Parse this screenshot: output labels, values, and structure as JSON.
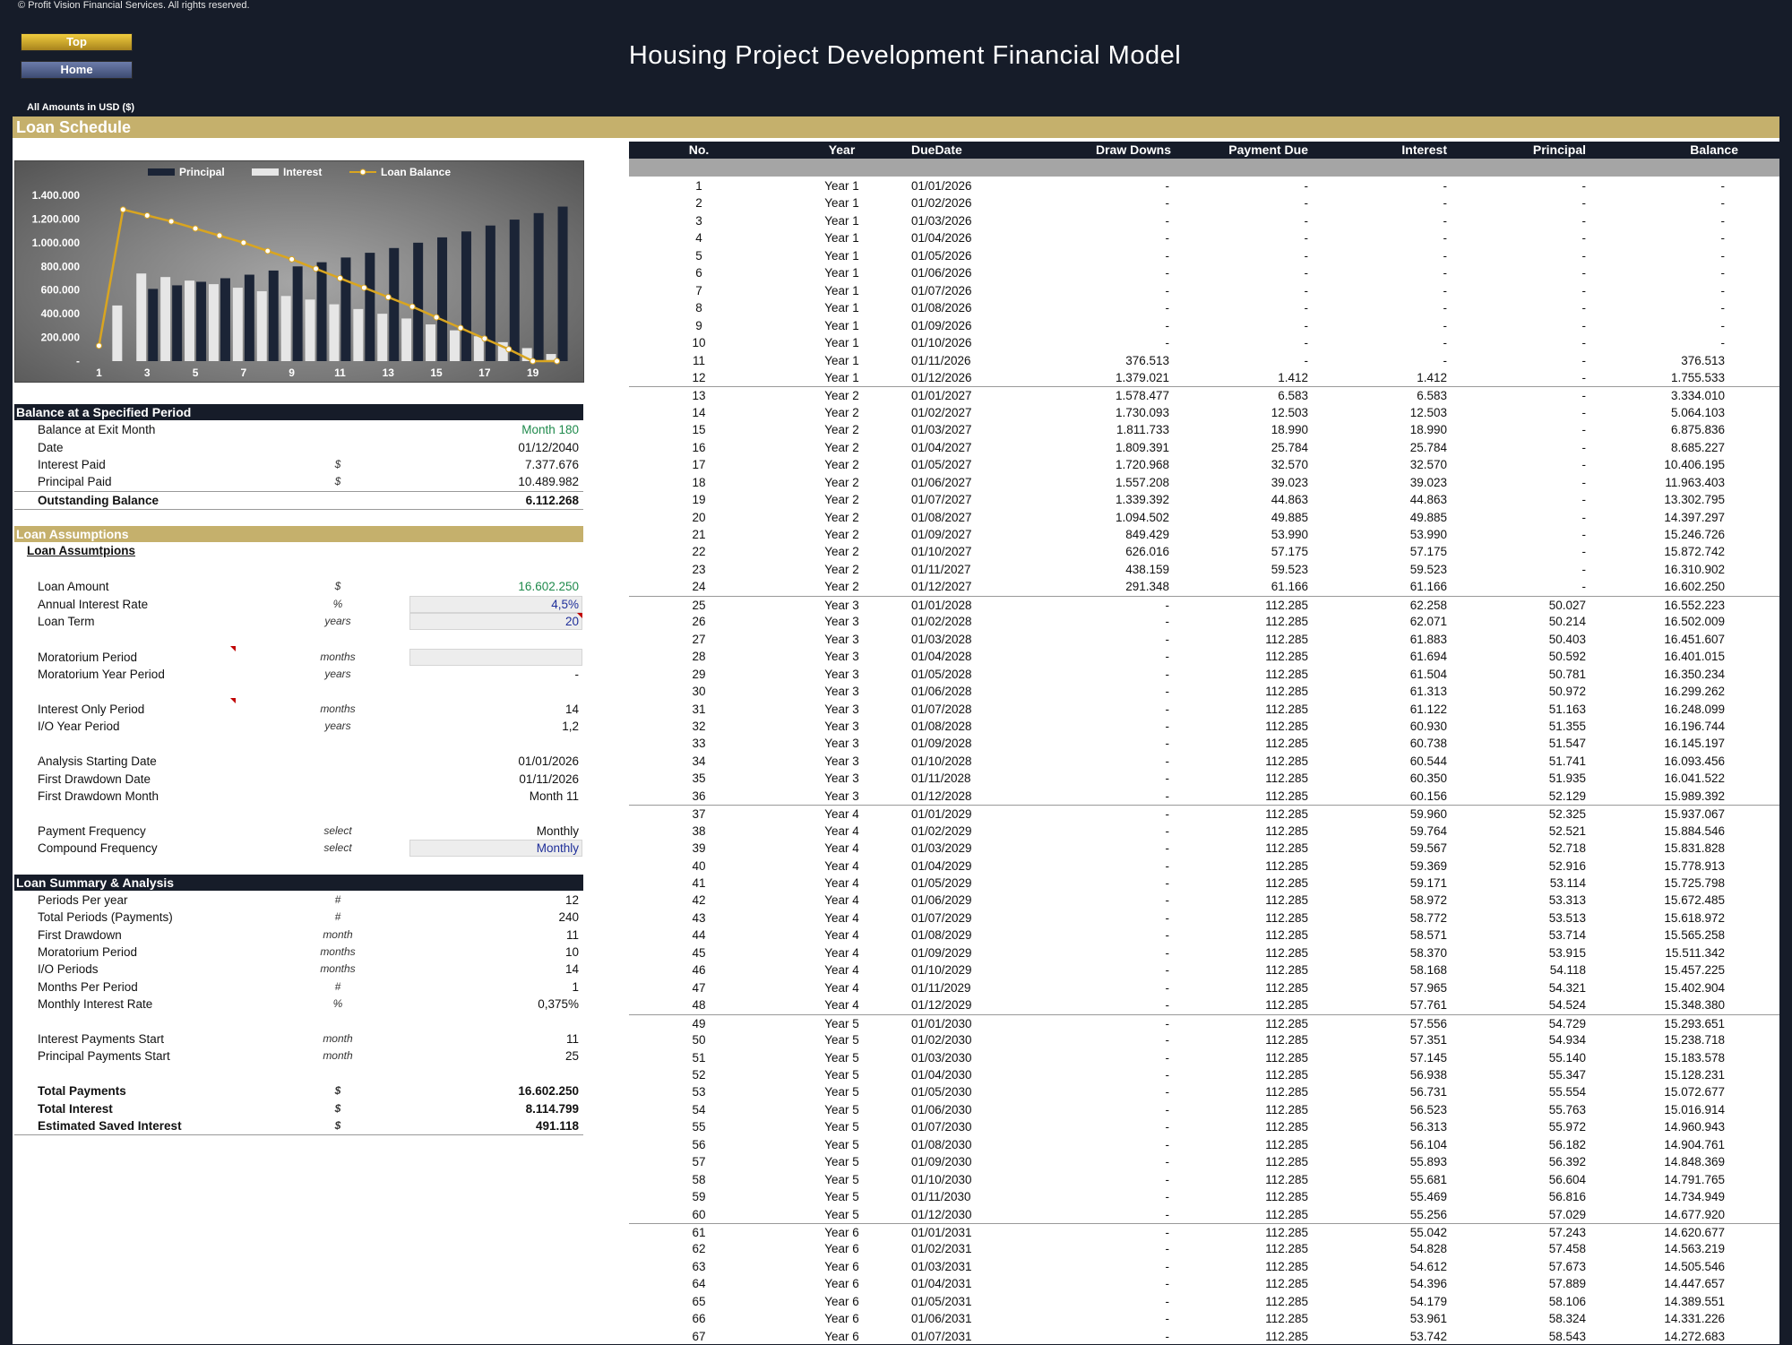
{
  "copyright": "© Profit Vision Financial Services. All rights reserved.",
  "nav": {
    "top": "Top",
    "home": "Home"
  },
  "title": "Housing Project Development Financial Model",
  "amounts_note": "All Amounts in  USD ($)",
  "section_title": "Loan Schedule",
  "chart_data": {
    "type": "bar",
    "legend": [
      "Principal",
      "Interest",
      "Loan Balance"
    ],
    "legend_position": "top",
    "categories": [
      1,
      2,
      3,
      4,
      5,
      6,
      7,
      8,
      9,
      10,
      11,
      12,
      13,
      14,
      15,
      16,
      17,
      18,
      19,
      20
    ],
    "x_tick_labels": [
      "1",
      "3",
      "5",
      "7",
      "9",
      "11",
      "13",
      "15",
      "17",
      "19"
    ],
    "y_tick_labels": [
      "-",
      "200.000",
      "400.000",
      "600.000",
      "800.000",
      "1.000.000",
      "1.200.000",
      "1.400.000"
    ],
    "ylim": [
      0,
      1400000
    ],
    "series": [
      {
        "name": "Principal",
        "type": "bar",
        "values": [
          0,
          0,
          610000,
          640000,
          670000,
          700000,
          730000,
          765000,
          800000,
          835000,
          875000,
          915000,
          955000,
          1000000,
          1045000,
          1095000,
          1145000,
          1195000,
          1250000,
          1305000
        ]
      },
      {
        "name": "Interest",
        "type": "bar",
        "values": [
          0,
          470000,
          740000,
          710000,
          680000,
          650000,
          620000,
          590000,
          550000,
          520000,
          480000,
          440000,
          400000,
          360000,
          310000,
          260000,
          210000,
          160000,
          110000,
          60000
        ]
      },
      {
        "name": "Loan Balance",
        "type": "line",
        "values": [
          130000,
          1280000,
          1230000,
          1180000,
          1120000,
          1060000,
          1000000,
          930000,
          860000,
          780000,
          700000,
          620000,
          540000,
          460000,
          370000,
          280000,
          190000,
          100000,
          0,
          0
        ]
      }
    ],
    "colors": {
      "principal": "#1b2436",
      "interest": "#e6e6e6",
      "balance": "#d9a520"
    }
  },
  "balance_section": {
    "title": "Balance at a Specified Period",
    "rows": [
      {
        "label": "Balance at Exit Month",
        "unit": "",
        "value": "Month 180"
      },
      {
        "label": "Date",
        "unit": "",
        "value": "01/12/2040"
      },
      {
        "label": "Interest Paid",
        "unit": "$",
        "value": "7.377.676"
      },
      {
        "label": "Principal Paid",
        "unit": "$",
        "value": "10.489.982"
      },
      {
        "label": "Outstanding Balance",
        "unit": "",
        "value": "6.112.268"
      }
    ]
  },
  "assumptions_section": {
    "title": "Loan Assumptions",
    "subtitle": "Loan Assumtpions",
    "rows": [
      {
        "label": "Loan Amount",
        "unit": "$",
        "value": "16.602.250"
      },
      {
        "label": "Annual Interest Rate",
        "unit": "%",
        "value": "4,5%"
      },
      {
        "label": "Loan Term",
        "unit": "years",
        "value": "20"
      },
      {
        "label": "Moratorium Period",
        "unit": "months",
        "value": ""
      },
      {
        "label": "Moratorium Year Period",
        "unit": "years",
        "value": "-"
      },
      {
        "label": "Interest Only Period",
        "unit": "months",
        "value": "14"
      },
      {
        "label": "I/O Year Period",
        "unit": "years",
        "value": "1,2"
      },
      {
        "label": "Analysis Starting Date",
        "unit": "",
        "value": "01/01/2026"
      },
      {
        "label": "First Drawdown Date",
        "unit": "",
        "value": "01/11/2026"
      },
      {
        "label": "First Drawdown Month",
        "unit": "",
        "value": "Month 11"
      },
      {
        "label": "Payment Frequency",
        "unit": "select",
        "value": "Monthly"
      },
      {
        "label": "Compound Frequency",
        "unit": "select",
        "value": "Monthly"
      }
    ]
  },
  "summary_section": {
    "title": "Loan Summary & Analysis",
    "rows": [
      {
        "label": "Periods Per year",
        "unit": "#",
        "value": "12"
      },
      {
        "label": "Total Periods (Payments)",
        "unit": "#",
        "value": "240"
      },
      {
        "label": "First Drawdown",
        "unit": "month",
        "value": "11"
      },
      {
        "label": "Moratorium Period",
        "unit": "months",
        "value": "10"
      },
      {
        "label": "I/O Periods",
        "unit": "months",
        "value": "14"
      },
      {
        "label": "Months Per Period",
        "unit": "#",
        "value": "1"
      },
      {
        "label": "Monthly Interest Rate",
        "unit": "%",
        "value": "0,375%"
      },
      {
        "label": "Interest Payments Start",
        "unit": "month",
        "value": "11"
      },
      {
        "label": "Principal Payments Start",
        "unit": "month",
        "value": "25"
      },
      {
        "label": "Total Payments",
        "unit": "$",
        "value": "16.602.250"
      },
      {
        "label": "Total Interest",
        "unit": "$",
        "value": "8.114.799"
      },
      {
        "label": "Estimated Saved Interest",
        "unit": "$",
        "value": "491.118"
      }
    ]
  },
  "schedule": {
    "headers": [
      "No.",
      "Year",
      "DueDate",
      "Draw Downs",
      "Payment Due",
      "Interest",
      "Principal",
      "Balance"
    ],
    "rows": [
      [
        "1",
        "Year 1",
        "01/01/2026",
        "-",
        "-",
        "-",
        "-",
        "-"
      ],
      [
        "2",
        "Year 1",
        "01/02/2026",
        "-",
        "-",
        "-",
        "-",
        "-"
      ],
      [
        "3",
        "Year 1",
        "01/03/2026",
        "-",
        "-",
        "-",
        "-",
        "-"
      ],
      [
        "4",
        "Year 1",
        "01/04/2026",
        "-",
        "-",
        "-",
        "-",
        "-"
      ],
      [
        "5",
        "Year 1",
        "01/05/2026",
        "-",
        "-",
        "-",
        "-",
        "-"
      ],
      [
        "6",
        "Year 1",
        "01/06/2026",
        "-",
        "-",
        "-",
        "-",
        "-"
      ],
      [
        "7",
        "Year 1",
        "01/07/2026",
        "-",
        "-",
        "-",
        "-",
        "-"
      ],
      [
        "8",
        "Year 1",
        "01/08/2026",
        "-",
        "-",
        "-",
        "-",
        "-"
      ],
      [
        "9",
        "Year 1",
        "01/09/2026",
        "-",
        "-",
        "-",
        "-",
        "-"
      ],
      [
        "10",
        "Year 1",
        "01/10/2026",
        "-",
        "-",
        "-",
        "-",
        "-"
      ],
      [
        "11",
        "Year 1",
        "01/11/2026",
        "376.513",
        "-",
        "-",
        "-",
        "376.513"
      ],
      [
        "12",
        "Year 1",
        "01/12/2026",
        "1.379.021",
        "1.412",
        "1.412",
        "-",
        "1.755.533"
      ],
      [
        "13",
        "Year 2",
        "01/01/2027",
        "1.578.477",
        "6.583",
        "6.583",
        "-",
        "3.334.010"
      ],
      [
        "14",
        "Year 2",
        "01/02/2027",
        "1.730.093",
        "12.503",
        "12.503",
        "-",
        "5.064.103"
      ],
      [
        "15",
        "Year 2",
        "01/03/2027",
        "1.811.733",
        "18.990",
        "18.990",
        "-",
        "6.875.836"
      ],
      [
        "16",
        "Year 2",
        "01/04/2027",
        "1.809.391",
        "25.784",
        "25.784",
        "-",
        "8.685.227"
      ],
      [
        "17",
        "Year 2",
        "01/05/2027",
        "1.720.968",
        "32.570",
        "32.570",
        "-",
        "10.406.195"
      ],
      [
        "18",
        "Year 2",
        "01/06/2027",
        "1.557.208",
        "39.023",
        "39.023",
        "-",
        "11.963.403"
      ],
      [
        "19",
        "Year 2",
        "01/07/2027",
        "1.339.392",
        "44.863",
        "44.863",
        "-",
        "13.302.795"
      ],
      [
        "20",
        "Year 2",
        "01/08/2027",
        "1.094.502",
        "49.885",
        "49.885",
        "-",
        "14.397.297"
      ],
      [
        "21",
        "Year 2",
        "01/09/2027",
        "849.429",
        "53.990",
        "53.990",
        "-",
        "15.246.726"
      ],
      [
        "22",
        "Year 2",
        "01/10/2027",
        "626.016",
        "57.175",
        "57.175",
        "-",
        "15.872.742"
      ],
      [
        "23",
        "Year 2",
        "01/11/2027",
        "438.159",
        "59.523",
        "59.523",
        "-",
        "16.310.902"
      ],
      [
        "24",
        "Year 2",
        "01/12/2027",
        "291.348",
        "61.166",
        "61.166",
        "-",
        "16.602.250"
      ],
      [
        "25",
        "Year 3",
        "01/01/2028",
        "-",
        "112.285",
        "62.258",
        "50.027",
        "16.552.223"
      ],
      [
        "26",
        "Year 3",
        "01/02/2028",
        "-",
        "112.285",
        "62.071",
        "50.214",
        "16.502.009"
      ],
      [
        "27",
        "Year 3",
        "01/03/2028",
        "-",
        "112.285",
        "61.883",
        "50.403",
        "16.451.607"
      ],
      [
        "28",
        "Year 3",
        "01/04/2028",
        "-",
        "112.285",
        "61.694",
        "50.592",
        "16.401.015"
      ],
      [
        "29",
        "Year 3",
        "01/05/2028",
        "-",
        "112.285",
        "61.504",
        "50.781",
        "16.350.234"
      ],
      [
        "30",
        "Year 3",
        "01/06/2028",
        "-",
        "112.285",
        "61.313",
        "50.972",
        "16.299.262"
      ],
      [
        "31",
        "Year 3",
        "01/07/2028",
        "-",
        "112.285",
        "61.122",
        "51.163",
        "16.248.099"
      ],
      [
        "32",
        "Year 3",
        "01/08/2028",
        "-",
        "112.285",
        "60.930",
        "51.355",
        "16.196.744"
      ],
      [
        "33",
        "Year 3",
        "01/09/2028",
        "-",
        "112.285",
        "60.738",
        "51.547",
        "16.145.197"
      ],
      [
        "34",
        "Year 3",
        "01/10/2028",
        "-",
        "112.285",
        "60.544",
        "51.741",
        "16.093.456"
      ],
      [
        "35",
        "Year 3",
        "01/11/2028",
        "-",
        "112.285",
        "60.350",
        "51.935",
        "16.041.522"
      ],
      [
        "36",
        "Year 3",
        "01/12/2028",
        "-",
        "112.285",
        "60.156",
        "52.129",
        "15.989.392"
      ],
      [
        "37",
        "Year 4",
        "01/01/2029",
        "-",
        "112.285",
        "59.960",
        "52.325",
        "15.937.067"
      ],
      [
        "38",
        "Year 4",
        "01/02/2029",
        "-",
        "112.285",
        "59.764",
        "52.521",
        "15.884.546"
      ],
      [
        "39",
        "Year 4",
        "01/03/2029",
        "-",
        "112.285",
        "59.567",
        "52.718",
        "15.831.828"
      ],
      [
        "40",
        "Year 4",
        "01/04/2029",
        "-",
        "112.285",
        "59.369",
        "52.916",
        "15.778.913"
      ],
      [
        "41",
        "Year 4",
        "01/05/2029",
        "-",
        "112.285",
        "59.171",
        "53.114",
        "15.725.798"
      ],
      [
        "42",
        "Year 4",
        "01/06/2029",
        "-",
        "112.285",
        "58.972",
        "53.313",
        "15.672.485"
      ],
      [
        "43",
        "Year 4",
        "01/07/2029",
        "-",
        "112.285",
        "58.772",
        "53.513",
        "15.618.972"
      ],
      [
        "44",
        "Year 4",
        "01/08/2029",
        "-",
        "112.285",
        "58.571",
        "53.714",
        "15.565.258"
      ],
      [
        "45",
        "Year 4",
        "01/09/2029",
        "-",
        "112.285",
        "58.370",
        "53.915",
        "15.511.342"
      ],
      [
        "46",
        "Year 4",
        "01/10/2029",
        "-",
        "112.285",
        "58.168",
        "54.118",
        "15.457.225"
      ],
      [
        "47",
        "Year 4",
        "01/11/2029",
        "-",
        "112.285",
        "57.965",
        "54.321",
        "15.402.904"
      ],
      [
        "48",
        "Year 4",
        "01/12/2029",
        "-",
        "112.285",
        "57.761",
        "54.524",
        "15.348.380"
      ],
      [
        "49",
        "Year 5",
        "01/01/2030",
        "-",
        "112.285",
        "57.556",
        "54.729",
        "15.293.651"
      ],
      [
        "50",
        "Year 5",
        "01/02/2030",
        "-",
        "112.285",
        "57.351",
        "54.934",
        "15.238.718"
      ],
      [
        "51",
        "Year 5",
        "01/03/2030",
        "-",
        "112.285",
        "57.145",
        "55.140",
        "15.183.578"
      ],
      [
        "52",
        "Year 5",
        "01/04/2030",
        "-",
        "112.285",
        "56.938",
        "55.347",
        "15.128.231"
      ],
      [
        "53",
        "Year 5",
        "01/05/2030",
        "-",
        "112.285",
        "56.731",
        "55.554",
        "15.072.677"
      ],
      [
        "54",
        "Year 5",
        "01/06/2030",
        "-",
        "112.285",
        "56.523",
        "55.763",
        "15.016.914"
      ],
      [
        "55",
        "Year 5",
        "01/07/2030",
        "-",
        "112.285",
        "56.313",
        "55.972",
        "14.960.943"
      ],
      [
        "56",
        "Year 5",
        "01/08/2030",
        "-",
        "112.285",
        "56.104",
        "56.182",
        "14.904.761"
      ],
      [
        "57",
        "Year 5",
        "01/09/2030",
        "-",
        "112.285",
        "55.893",
        "56.392",
        "14.848.369"
      ],
      [
        "58",
        "Year 5",
        "01/10/2030",
        "-",
        "112.285",
        "55.681",
        "56.604",
        "14.791.765"
      ],
      [
        "59",
        "Year 5",
        "01/11/2030",
        "-",
        "112.285",
        "55.469",
        "56.816",
        "14.734.949"
      ],
      [
        "60",
        "Year 5",
        "01/12/2030",
        "-",
        "112.285",
        "55.256",
        "57.029",
        "14.677.920"
      ],
      [
        "61",
        "Year 6",
        "01/01/2031",
        "-",
        "112.285",
        "55.042",
        "57.243",
        "14.620.677"
      ],
      [
        "62",
        "Year 6",
        "01/02/2031",
        "-",
        "112.285",
        "54.828",
        "57.458",
        "14.563.219"
      ],
      [
        "63",
        "Year 6",
        "01/03/2031",
        "-",
        "112.285",
        "54.612",
        "57.673",
        "14.505.546"
      ],
      [
        "64",
        "Year 6",
        "01/04/2031",
        "-",
        "112.285",
        "54.396",
        "57.889",
        "14.447.657"
      ],
      [
        "65",
        "Year 6",
        "01/05/2031",
        "-",
        "112.285",
        "54.179",
        "58.106",
        "14.389.551"
      ],
      [
        "66",
        "Year 6",
        "01/06/2031",
        "-",
        "112.285",
        "53.961",
        "58.324",
        "14.331.226"
      ],
      [
        "67",
        "Year 6",
        "01/07/2031",
        "-",
        "112.285",
        "53.742",
        "58.543",
        "14.272.683"
      ]
    ]
  }
}
